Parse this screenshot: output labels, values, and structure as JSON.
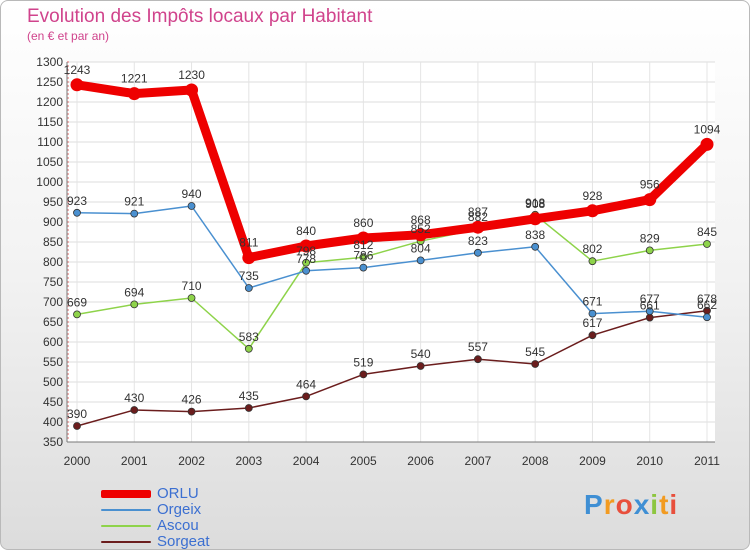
{
  "header": {
    "title": "Evolution des Impôts locaux par Habitant",
    "subtitle": "(en € et par an)"
  },
  "logo": {
    "letters": [
      "P",
      "r",
      "o",
      "x",
      "i",
      "t",
      "i"
    ]
  },
  "chart_data": {
    "type": "line",
    "title": "Evolution des Impôts locaux par Habitant",
    "subtitle": "(en € et par an)",
    "x": [
      "2000",
      "2001",
      "2002",
      "2003",
      "2004",
      "2005",
      "2006",
      "2007",
      "2008",
      "2009",
      "2010",
      "2011"
    ],
    "ylim": [
      350,
      1300
    ],
    "yticks": [
      350,
      400,
      450,
      500,
      550,
      600,
      650,
      700,
      750,
      800,
      850,
      900,
      950,
      1000,
      1050,
      1100,
      1150,
      1200,
      1250,
      1300
    ],
    "grid": true,
    "legend_position": "bottom-left",
    "series": [
      {
        "name": "ORLU",
        "color": "#ee0000",
        "values": [
          1243,
          1221,
          1230,
          811,
          840,
          860,
          868,
          887,
          908,
          928,
          956,
          1094
        ]
      },
      {
        "name": "Orgeix",
        "color": "#4a90d0",
        "values": [
          923,
          921,
          940,
          735,
          778,
          786,
          804,
          823,
          838,
          671,
          677,
          662
        ]
      },
      {
        "name": "Ascou",
        "color": "#8ed34a",
        "values": [
          669,
          694,
          710,
          583,
          798,
          812,
          852,
          882,
          918,
          802,
          829,
          845
        ]
      },
      {
        "name": "Sorgeat",
        "color": "#6b1d1d",
        "values": [
          390,
          430,
          426,
          435,
          464,
          519,
          540,
          557,
          545,
          617,
          661,
          678
        ]
      }
    ]
  }
}
